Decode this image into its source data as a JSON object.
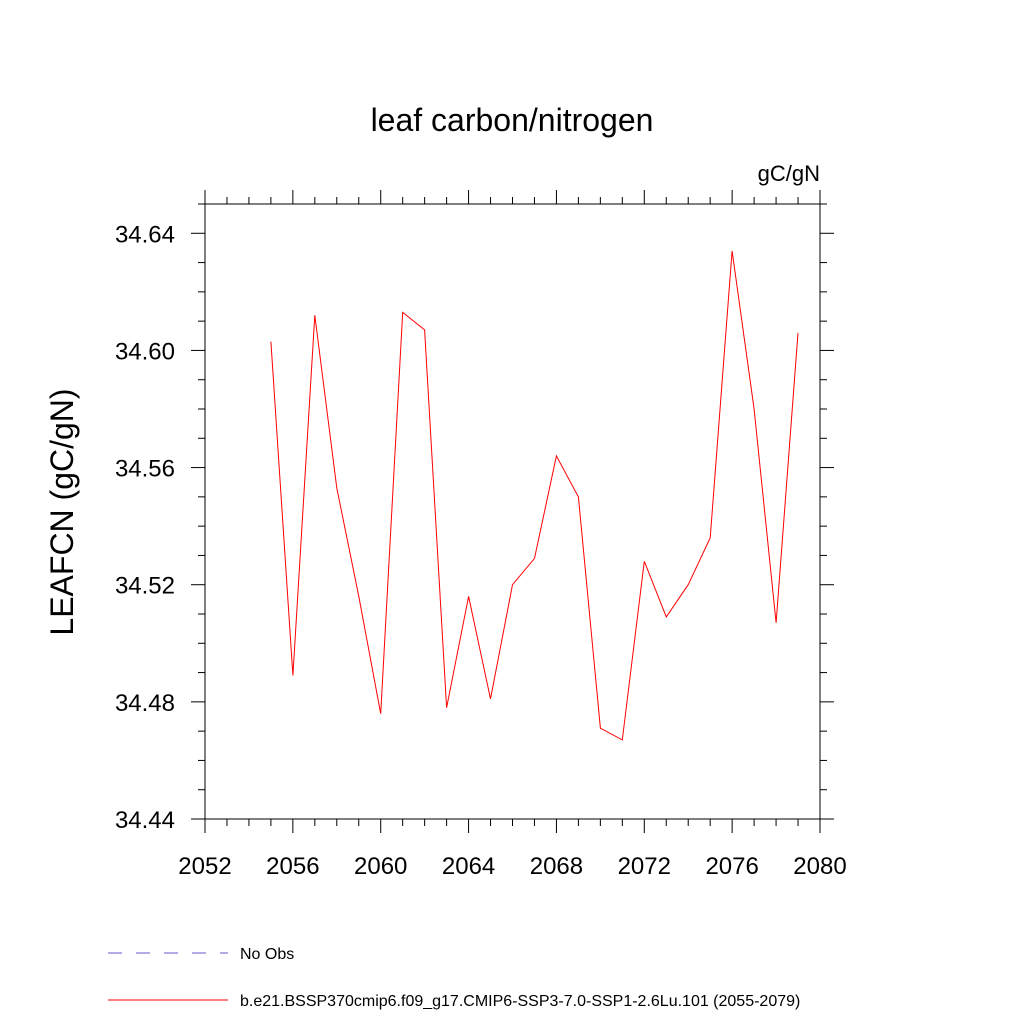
{
  "chart_data": {
    "type": "line",
    "title": "leaf carbon/nitrogen",
    "units": "gC/gN",
    "ylabel": "LEAFCN  (gC/gN)",
    "xlabel": "",
    "xlim": [
      2052,
      2080
    ],
    "ylim": [
      34.44,
      34.65
    ],
    "x_ticks": [
      "2052",
      "2056",
      "2060",
      "2064",
      "2068",
      "2072",
      "2076",
      "2080"
    ],
    "y_ticks": [
      "34.44",
      "34.48",
      "34.52",
      "34.56",
      "34.60",
      "34.64"
    ],
    "series": [
      {
        "name": "b.e21.BSSP370cmip6.f09_g17.CMIP6-SSP3-7.0-SSP1-2.6Lu.101 (2055-2079)",
        "color": "#ff0000",
        "x": [
          2055,
          2056,
          2057,
          2058,
          2059,
          2060,
          2061,
          2062,
          2063,
          2064,
          2065,
          2066,
          2067,
          2068,
          2069,
          2070,
          2071,
          2072,
          2073,
          2074,
          2075,
          2076,
          2077,
          2078,
          2079
        ],
        "values": [
          34.603,
          34.489,
          34.612,
          34.553,
          34.516,
          34.476,
          34.613,
          34.607,
          34.478,
          34.516,
          34.481,
          34.52,
          34.529,
          34.564,
          34.55,
          34.471,
          34.467,
          34.528,
          34.509,
          34.52,
          34.536,
          34.634,
          34.58,
          34.507,
          34.606
        ]
      }
    ],
    "legend": [
      {
        "label": "No Obs",
        "color": "#6a5acd",
        "style": "dashed"
      },
      {
        "label": "b.e21.BSSP370cmip6.f09_g17.CMIP6-SSP3-7.0-SSP1-2.6Lu.101 (2055-2079)",
        "color": "#ff0000",
        "style": "solid"
      }
    ]
  }
}
